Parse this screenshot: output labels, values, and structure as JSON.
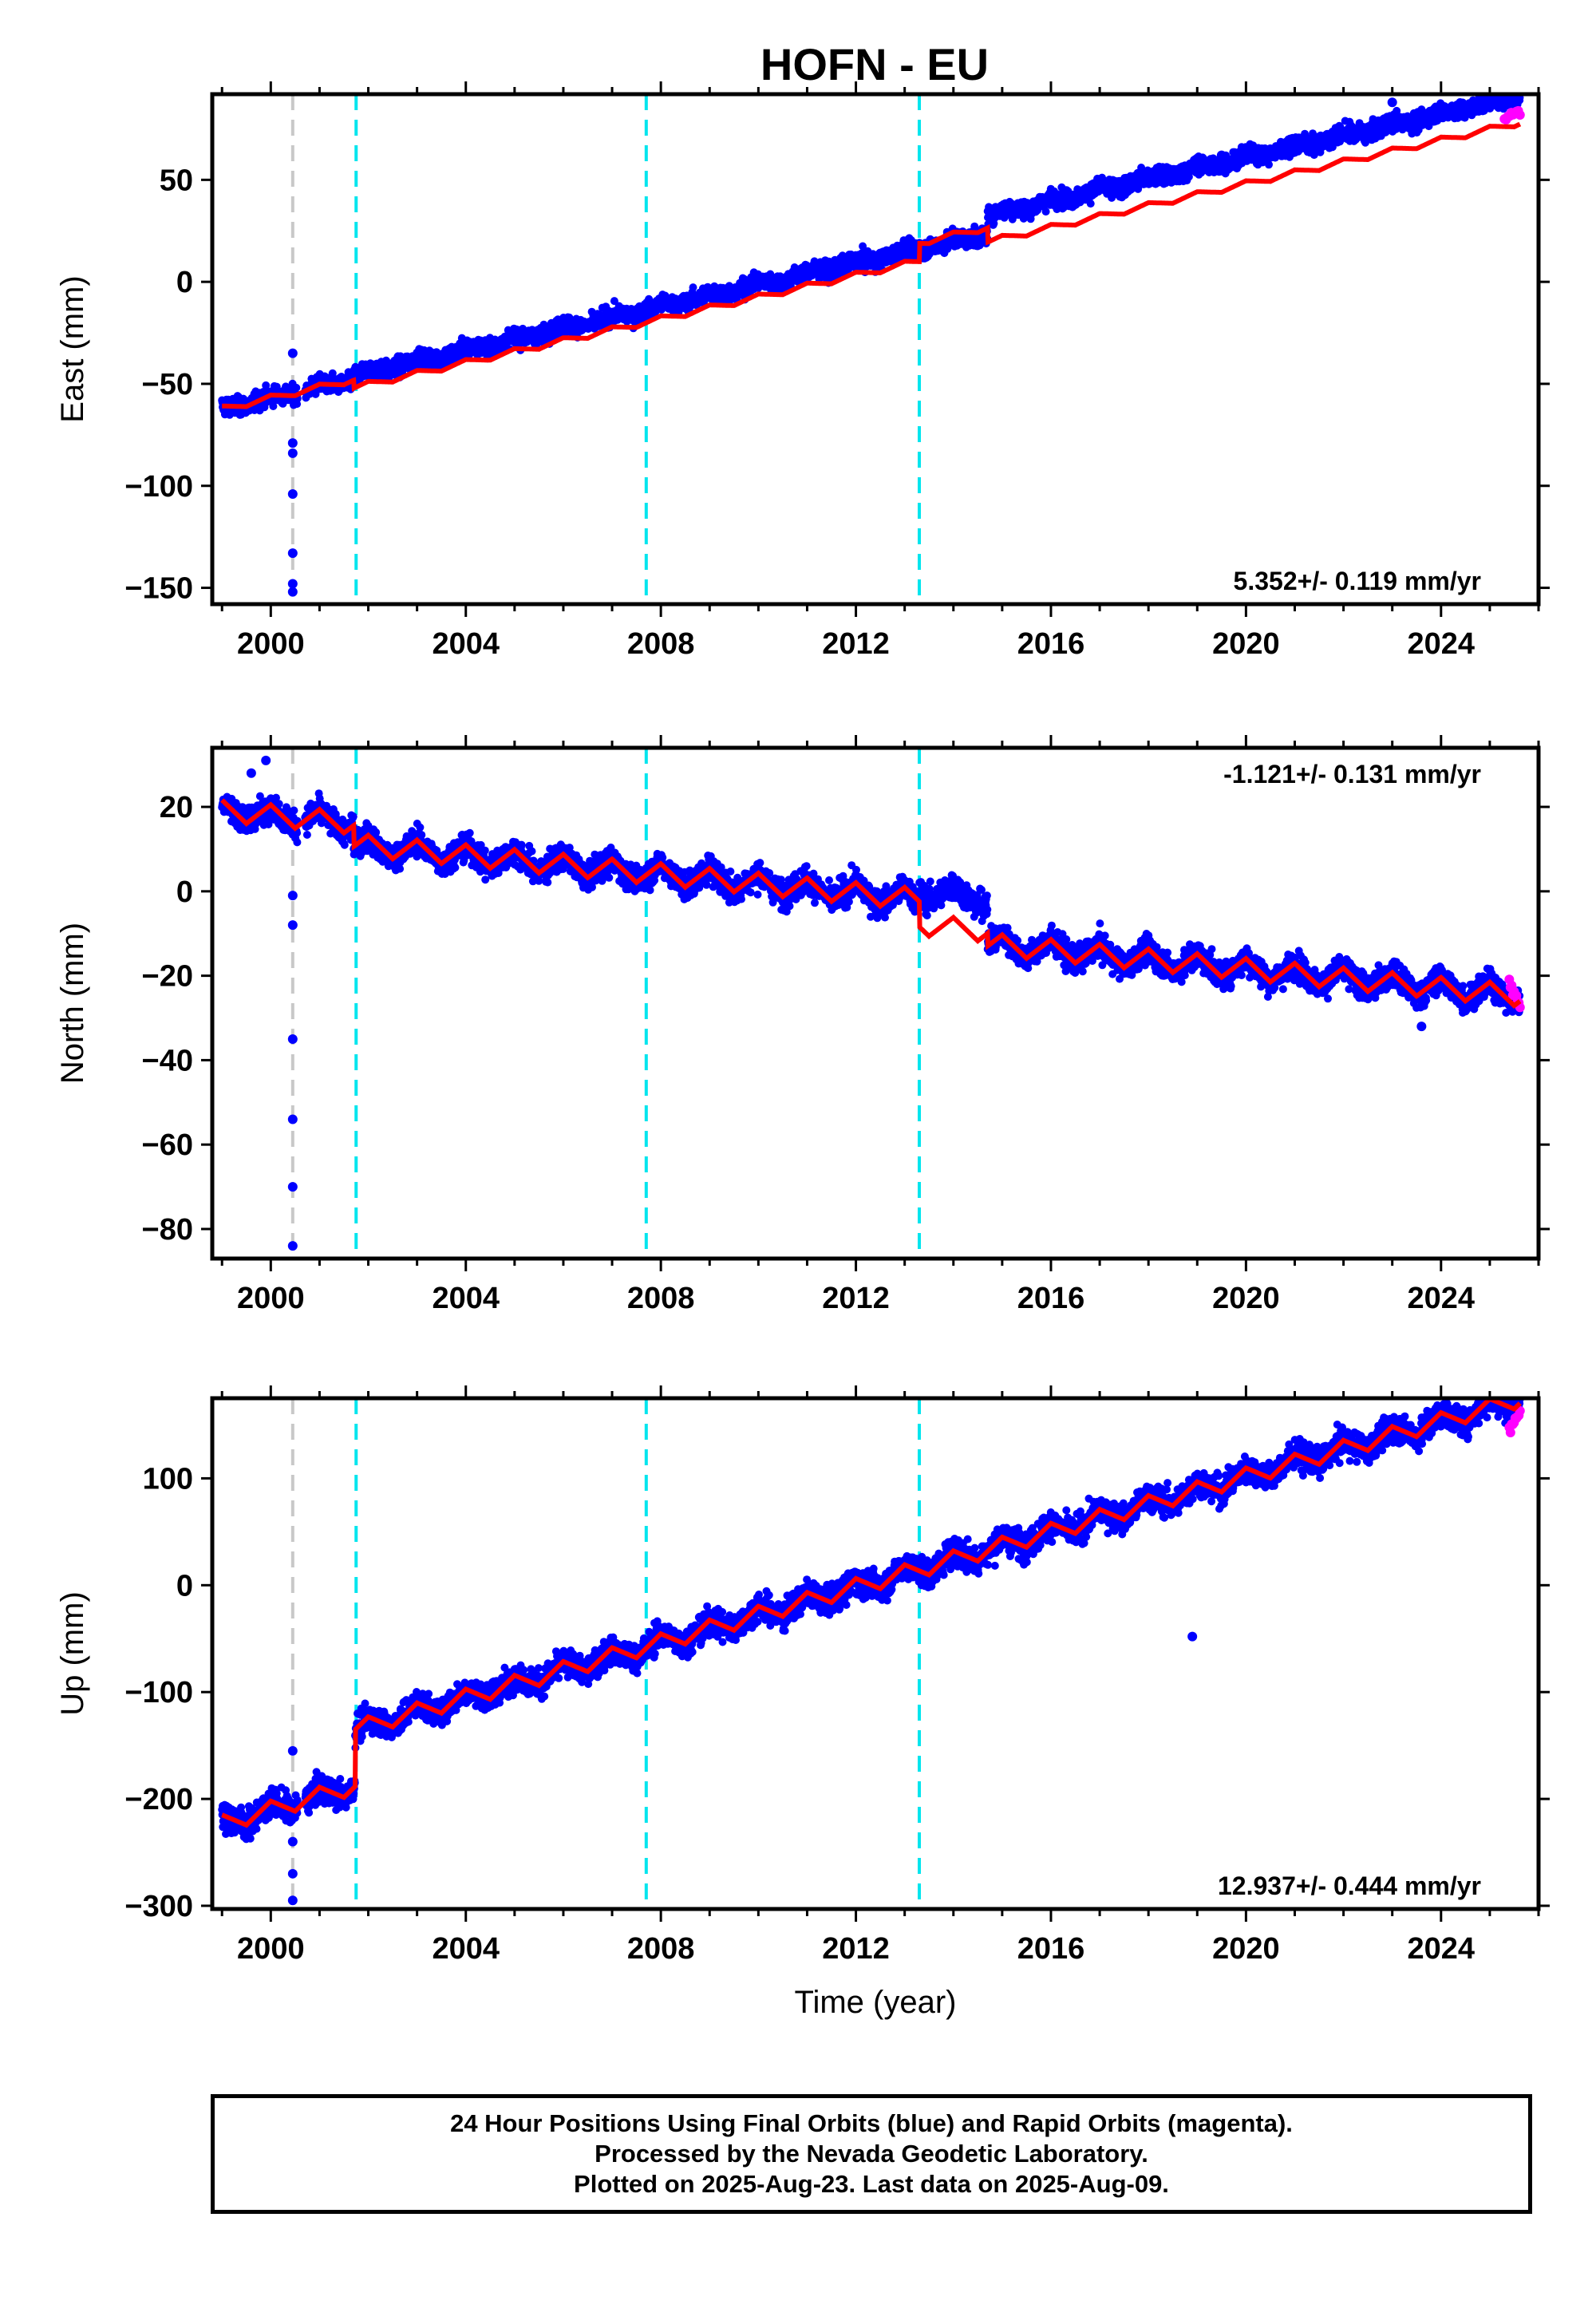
{
  "title": "HOFN - EU",
  "chart_data": [
    {
      "type": "scatter",
      "component": "East",
      "ylabel": "East (mm)",
      "rate_text": "5.352+/- 0.119 mm/yr",
      "rate_position": "bottom-right",
      "xlim": [
        1998.8,
        2026.0
      ],
      "ylim": [
        -158,
        92
      ],
      "yticks": [
        50,
        0,
        -50,
        -100,
        -150
      ],
      "yticklabels": [
        "50",
        "0",
        "−50",
        "−100",
        "−150"
      ],
      "xticks": [
        2000,
        2004,
        2008,
        2012,
        2016,
        2020,
        2024
      ],
      "xticklabels": [
        "2000",
        "2004",
        "2008",
        "2012",
        "2016",
        "2020",
        "2024"
      ],
      "trend": {
        "t0": 2000,
        "v0": -57,
        "rate": 5.352,
        "seasonal_amp": 1.5
      },
      "steps": [
        {
          "x": 2001.7,
          "dy": -4,
          "dy_obs": 2
        },
        {
          "x": 2013.3,
          "dy": 9,
          "dy_obs": 0
        },
        {
          "x": 2014.7,
          "dy": -7,
          "dy_obs": 9
        }
      ],
      "scatter_sigma": 3,
      "outliers": [
        [
          2000.45,
          -35
        ],
        [
          2000.45,
          -79
        ],
        [
          2000.45,
          -84
        ],
        [
          2000.45,
          -104
        ],
        [
          2000.45,
          -133
        ],
        [
          2000.45,
          -148
        ],
        [
          2000.45,
          -152
        ],
        [
          2023.0,
          88
        ],
        [
          2019.5,
          62
        ]
      ],
      "rapid_segment": {
        "x": [
          2025.3,
          2025.62
        ],
        "y": [
          80,
          84
        ]
      },
      "end_x": 2025.62,
      "vlines": [
        {
          "x": 2000.45,
          "color": "#c8c8c8"
        },
        {
          "x": 2001.75,
          "color": "#00e5ee"
        },
        {
          "x": 2007.7,
          "color": "#00e5ee"
        },
        {
          "x": 2013.3,
          "color": "#00e5ee"
        }
      ]
    },
    {
      "type": "scatter",
      "component": "North",
      "ylabel": "North (mm)",
      "rate_text": "-1.121+/- 0.131 mm/yr",
      "rate_position": "top-right",
      "xlim": [
        1998.8,
        2026.0
      ],
      "ylim": [
        -87,
        34
      ],
      "yticks": [
        20,
        0,
        -20,
        -40,
        -60,
        -80
      ],
      "yticklabels": [
        "20",
        "0",
        "−20",
        "−40",
        "−60",
        "−80"
      ],
      "xticks": [
        2000,
        2004,
        2008,
        2012,
        2016,
        2020,
        2024
      ],
      "xticklabels": [
        "2000",
        "2004",
        "2008",
        "2012",
        "2016",
        "2020",
        "2024"
      ],
      "trend": {
        "t0": 2000,
        "v0": 18,
        "rate": -1.121,
        "seasonal_amp": 2.5
      },
      "steps": [
        {
          "x": 2001.7,
          "dy": -5,
          "dy_obs": -5
        },
        {
          "x": 2013.3,
          "dy": -6,
          "dy_obs": 2
        },
        {
          "x": 2014.7,
          "dy": -3,
          "dy_obs": -11
        }
      ],
      "scatter_sigma": 2.2,
      "outliers": [
        [
          2000.45,
          -1
        ],
        [
          2000.45,
          -8
        ],
        [
          2000.45,
          -35
        ],
        [
          2000.45,
          -54
        ],
        [
          2000.45,
          -70
        ],
        [
          2000.45,
          -84
        ],
        [
          1999.6,
          28
        ],
        [
          1999.9,
          31
        ],
        [
          2023.6,
          -32
        ]
      ],
      "rapid_segment": {
        "x": [
          2025.4,
          2025.62
        ],
        "y": [
          -22,
          -26
        ]
      },
      "end_x": 2025.62,
      "vlines": [
        {
          "x": 2000.45,
          "color": "#c8c8c8"
        },
        {
          "x": 2001.75,
          "color": "#00e5ee"
        },
        {
          "x": 2007.7,
          "color": "#00e5ee"
        },
        {
          "x": 2013.3,
          "color": "#00e5ee"
        }
      ]
    },
    {
      "type": "scatter",
      "component": "Up",
      "ylabel": "Up (mm)",
      "xlabel": "Time (year)",
      "rate_text": "12.937+/- 0.444 mm/yr",
      "rate_position": "bottom-right",
      "xlim": [
        1998.8,
        2026.0
      ],
      "ylim": [
        -303,
        175
      ],
      "yticks": [
        100,
        0,
        -100,
        -200,
        -300
      ],
      "yticklabels": [
        "100",
        "0",
        "−100",
        "−200",
        "−300"
      ],
      "xticks": [
        2000,
        2004,
        2008,
        2012,
        2016,
        2020,
        2024
      ],
      "xticklabels": [
        "2000",
        "2004",
        "2008",
        "2012",
        "2016",
        "2020",
        "2024"
      ],
      "trend": {
        "t0": 2000,
        "v0": -210,
        "rate": 12.937,
        "seasonal_amp": 8
      },
      "steps": [
        {
          "x": 2001.73,
          "dy": 53,
          "dy_obs": 53
        }
      ],
      "scatter_sigma": 9,
      "outliers": [
        [
          2000.45,
          -155
        ],
        [
          2000.45,
          -240
        ],
        [
          2000.45,
          -270
        ],
        [
          2000.45,
          -295
        ],
        [
          2018.9,
          -48
        ]
      ],
      "rapid_segment": {
        "x": [
          2025.4,
          2025.62
        ],
        "y": [
          150,
          160
        ]
      },
      "end_x": 2025.62,
      "vlines": [
        {
          "x": 2000.45,
          "color": "#c8c8c8"
        },
        {
          "x": 2001.75,
          "color": "#00e5ee"
        },
        {
          "x": 2007.7,
          "color": "#00e5ee"
        },
        {
          "x": 2013.3,
          "color": "#00e5ee"
        }
      ]
    }
  ],
  "colors": {
    "final_orbits": "#0000ff",
    "rapid_orbits": "#ff00ff",
    "model": "#ff0000",
    "equipment_change": "#00e5ee",
    "other_event": "#c8c8c8"
  },
  "caption": {
    "line1": "24 Hour Positions Using Final Orbits (blue) and Rapid Orbits (magenta).",
    "line2": "Processed by the Nevada Geodetic Laboratory.",
    "line3": "Plotted on 2025-Aug-23. Last data on 2025-Aug-09."
  }
}
